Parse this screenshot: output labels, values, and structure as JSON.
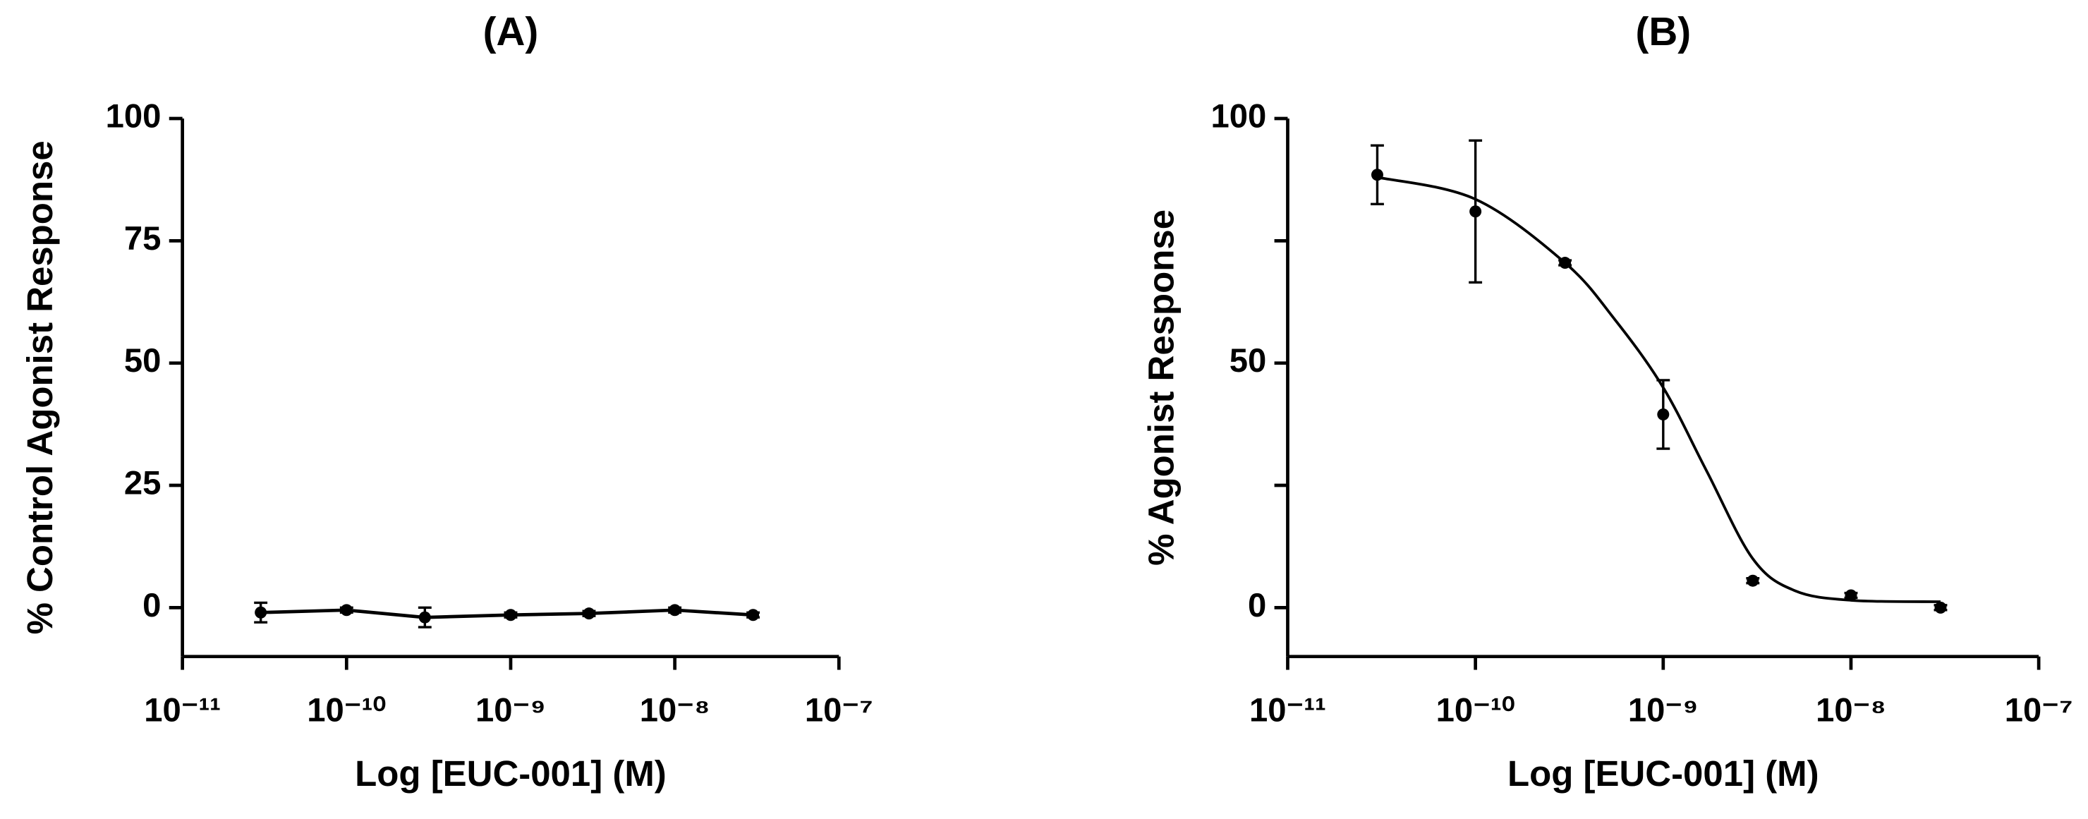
{
  "chart_data": [
    {
      "type": "scatter",
      "title": "(A)",
      "x_label": "Log [EUC-001] (M)",
      "y_label": "% Control Agonist Response",
      "x": [
        3e-11,
        1e-10,
        3e-10,
        1e-09,
        3e-09,
        1e-08,
        3e-08
      ],
      "series": [
        {
          "color": "#000000",
          "values": [
            -1,
            -0.5,
            -2,
            -1.5,
            -1.2,
            -0.5,
            -1.5
          ],
          "errors": [
            2,
            0.5,
            2,
            0.5,
            0.5,
            0.5,
            0.5
          ]
        }
      ],
      "connect": true,
      "log_x": true,
      "xlim": [
        1e-11,
        1e-07
      ],
      "xticks": [
        {
          "value": 1e-11,
          "label": "10⁻¹¹"
        },
        {
          "value": 1e-10,
          "label": "10⁻¹⁰"
        },
        {
          "value": 1e-09,
          "label": "10⁻⁹"
        },
        {
          "value": 1e-08,
          "label": "10⁻⁸"
        },
        {
          "value": 1e-07,
          "label": "10⁻⁷"
        }
      ],
      "ylim": [
        -10,
        100
      ],
      "yticks": [
        0,
        25,
        50,
        75,
        100
      ]
    },
    {
      "type": "scatter",
      "title": "(B)",
      "x_label": "Log [EUC-001] (M)",
      "y_label": "% Agonist Response",
      "x": [
        3e-11,
        1e-10,
        3e-10,
        1e-09,
        3e-09,
        1e-08,
        3e-08
      ],
      "series": [
        {
          "color": "#000000",
          "values": [
            88.5,
            81,
            70.5,
            39.5,
            5.5,
            2.5,
            0
          ],
          "errors": [
            6,
            14.5,
            0.5,
            7,
            0.5,
            0.5,
            0.5
          ]
        }
      ],
      "fit": {
        "x": [
          3e-11,
          1e-10,
          3e-10,
          5.5e-10,
          1e-09,
          1.7e-09,
          3e-09,
          5e-09,
          1e-08,
          3e-08
        ],
        "values": [
          88,
          83.5,
          70.5,
          59,
          45,
          28,
          10,
          3.5,
          1.5,
          1.2
        ]
      },
      "connect": false,
      "log_x": true,
      "xlim": [
        1e-11,
        1e-07
      ],
      "xticks": [
        {
          "value": 1e-11,
          "label": "10⁻¹¹"
        },
        {
          "value": 1e-10,
          "label": "10⁻¹⁰"
        },
        {
          "value": 1e-09,
          "label": "10⁻⁹"
        },
        {
          "value": 1e-08,
          "label": "10⁻⁸"
        },
        {
          "value": 1e-07,
          "label": "10⁻⁷"
        }
      ],
      "ylim": [
        -10,
        100
      ],
      "yticks": [
        0,
        50,
        100
      ],
      "yminor": [
        25,
        75
      ]
    }
  ]
}
